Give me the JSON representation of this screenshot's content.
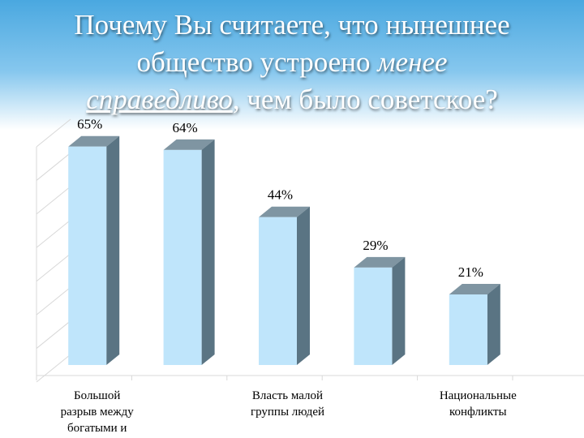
{
  "title": {
    "line1": "Почему Вы считаете, что нынешнее",
    "line2_pre": "общество устроено ",
    "line2_em": "менее",
    "line3_em": "справедливо",
    "line3_post": ", чем было советское?"
  },
  "chart_data": {
    "type": "bar",
    "categories": [
      "Большой разрыв между богатыми и",
      "",
      "Власть малой группы людей",
      "",
      "Национальные конфликты"
    ],
    "category_lines": [
      [
        "Большой",
        "разрыв между",
        "богатыми и"
      ],
      [],
      [
        "Власть малой",
        "группы людей"
      ],
      [],
      [
        "Национальные",
        "конфликты"
      ]
    ],
    "values": [
      65,
      64,
      44,
      29,
      21
    ],
    "value_labels": [
      "65%",
      "64%",
      "44%",
      "29%",
      "21%"
    ],
    "ylim": [
      0,
      70
    ],
    "grid": true,
    "bar_colors": {
      "front": "#bfe5fb",
      "side": "#5a7483",
      "top": "#7f95a2"
    }
  }
}
